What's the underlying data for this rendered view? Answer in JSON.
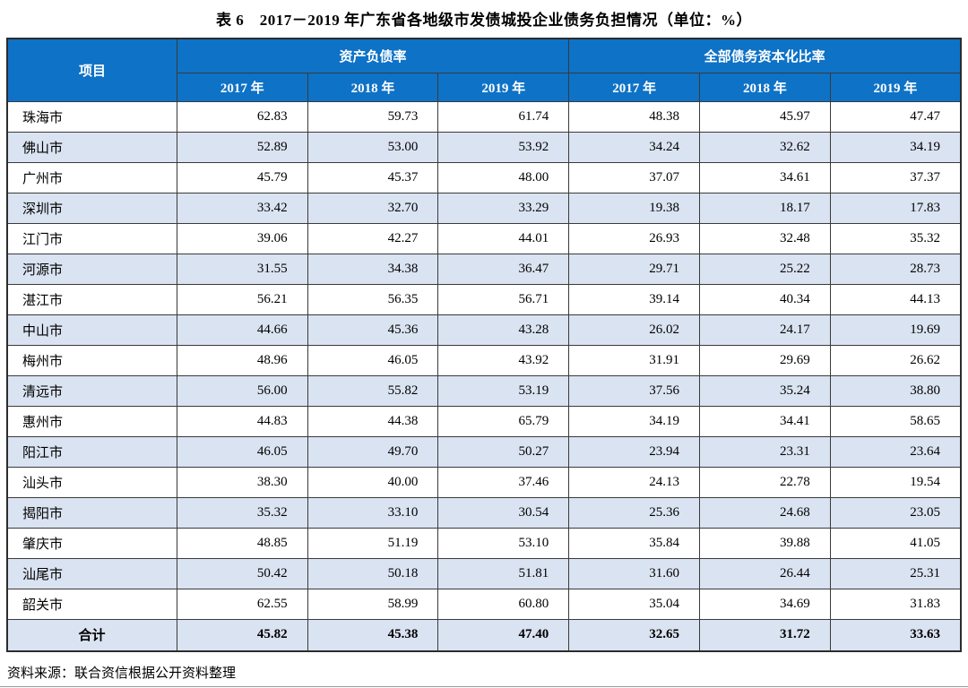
{
  "title": "表 6　2017－2019 年广东省各地级市发债城投企业债务负担情况（单位：%）",
  "source": "资料来源：联合资信根据公开资料整理",
  "colors": {
    "header_bg": "#0E72C6",
    "header_text": "#FFFFFF",
    "stripe_bg": "#DAE3F1",
    "grid_line": "#3A3A3A"
  },
  "table": {
    "project_header": "项目",
    "group_headers": [
      "资产负债率",
      "全部债务资本化比率"
    ],
    "years": [
      "2017 年",
      "2018 年",
      "2019 年"
    ],
    "rows": [
      {
        "city": "珠海市",
        "values": [
          "62.83",
          "59.73",
          "61.74",
          "48.38",
          "45.97",
          "47.47"
        ]
      },
      {
        "city": "佛山市",
        "values": [
          "52.89",
          "53.00",
          "53.92",
          "34.24",
          "32.62",
          "34.19"
        ]
      },
      {
        "city": "广州市",
        "values": [
          "45.79",
          "45.37",
          "48.00",
          "37.07",
          "34.61",
          "37.37"
        ]
      },
      {
        "city": "深圳市",
        "values": [
          "33.42",
          "32.70",
          "33.29",
          "19.38",
          "18.17",
          "17.83"
        ]
      },
      {
        "city": "江门市",
        "values": [
          "39.06",
          "42.27",
          "44.01",
          "26.93",
          "32.48",
          "35.32"
        ]
      },
      {
        "city": "河源市",
        "values": [
          "31.55",
          "34.38",
          "36.47",
          "29.71",
          "25.22",
          "28.73"
        ]
      },
      {
        "city": "湛江市",
        "values": [
          "56.21",
          "56.35",
          "56.71",
          "39.14",
          "40.34",
          "44.13"
        ]
      },
      {
        "city": "中山市",
        "values": [
          "44.66",
          "45.36",
          "43.28",
          "26.02",
          "24.17",
          "19.69"
        ]
      },
      {
        "city": "梅州市",
        "values": [
          "48.96",
          "46.05",
          "43.92",
          "31.91",
          "29.69",
          "26.62"
        ]
      },
      {
        "city": "清远市",
        "values": [
          "56.00",
          "55.82",
          "53.19",
          "37.56",
          "35.24",
          "38.80"
        ]
      },
      {
        "city": "惠州市",
        "values": [
          "44.83",
          "44.38",
          "65.79",
          "34.19",
          "34.41",
          "58.65"
        ]
      },
      {
        "city": "阳江市",
        "values": [
          "46.05",
          "49.70",
          "50.27",
          "23.94",
          "23.31",
          "23.64"
        ]
      },
      {
        "city": "汕头市",
        "values": [
          "38.30",
          "40.00",
          "37.46",
          "24.13",
          "22.78",
          "19.54"
        ]
      },
      {
        "city": "揭阳市",
        "values": [
          "35.32",
          "33.10",
          "30.54",
          "25.36",
          "24.68",
          "23.05"
        ]
      },
      {
        "city": "肇庆市",
        "values": [
          "48.85",
          "51.19",
          "53.10",
          "35.84",
          "39.88",
          "41.05"
        ]
      },
      {
        "city": "汕尾市",
        "values": [
          "50.42",
          "50.18",
          "51.81",
          "31.60",
          "26.44",
          "25.31"
        ]
      },
      {
        "city": "韶关市",
        "values": [
          "62.55",
          "58.99",
          "60.80",
          "35.04",
          "34.69",
          "31.83"
        ]
      }
    ],
    "total": {
      "label": "合计",
      "values": [
        "45.82",
        "45.38",
        "47.40",
        "32.65",
        "31.72",
        "33.63"
      ]
    }
  },
  "chart_data": {
    "type": "table",
    "title": "表 6　2017－2019 年广东省各地级市发债城投企业债务负担情况（单位：%）",
    "column_groups": [
      "资产负债率",
      "全部债务资本化比率"
    ],
    "columns": [
      "项目",
      "资产负债率 2017 年",
      "资产负债率 2018 年",
      "资产负债率 2019 年",
      "全部债务资本化比率 2017 年",
      "全部债务资本化比率 2018 年",
      "全部债务资本化比率 2019 年"
    ],
    "rows": [
      [
        "珠海市",
        62.83,
        59.73,
        61.74,
        48.38,
        45.97,
        47.47
      ],
      [
        "佛山市",
        52.89,
        53.0,
        53.92,
        34.24,
        32.62,
        34.19
      ],
      [
        "广州市",
        45.79,
        45.37,
        48.0,
        37.07,
        34.61,
        37.37
      ],
      [
        "深圳市",
        33.42,
        32.7,
        33.29,
        19.38,
        18.17,
        17.83
      ],
      [
        "江门市",
        39.06,
        42.27,
        44.01,
        26.93,
        32.48,
        35.32
      ],
      [
        "河源市",
        31.55,
        34.38,
        36.47,
        29.71,
        25.22,
        28.73
      ],
      [
        "湛江市",
        56.21,
        56.35,
        56.71,
        39.14,
        40.34,
        44.13
      ],
      [
        "中山市",
        44.66,
        45.36,
        43.28,
        26.02,
        24.17,
        19.69
      ],
      [
        "梅州市",
        48.96,
        46.05,
        43.92,
        31.91,
        29.69,
        26.62
      ],
      [
        "清远市",
        56.0,
        55.82,
        53.19,
        37.56,
        35.24,
        38.8
      ],
      [
        "惠州市",
        44.83,
        44.38,
        65.79,
        34.19,
        34.41,
        58.65
      ],
      [
        "阳江市",
        46.05,
        49.7,
        50.27,
        23.94,
        23.31,
        23.64
      ],
      [
        "汕头市",
        38.3,
        40.0,
        37.46,
        24.13,
        22.78,
        19.54
      ],
      [
        "揭阳市",
        35.32,
        33.1,
        30.54,
        25.36,
        24.68,
        23.05
      ],
      [
        "肇庆市",
        48.85,
        51.19,
        53.1,
        35.84,
        39.88,
        41.05
      ],
      [
        "汕尾市",
        50.42,
        50.18,
        51.81,
        31.6,
        26.44,
        25.31
      ],
      [
        "韶关市",
        62.55,
        58.99,
        60.8,
        35.04,
        34.69,
        31.83
      ],
      [
        "合计",
        45.82,
        45.38,
        47.4,
        32.65,
        31.72,
        33.63
      ]
    ]
  }
}
